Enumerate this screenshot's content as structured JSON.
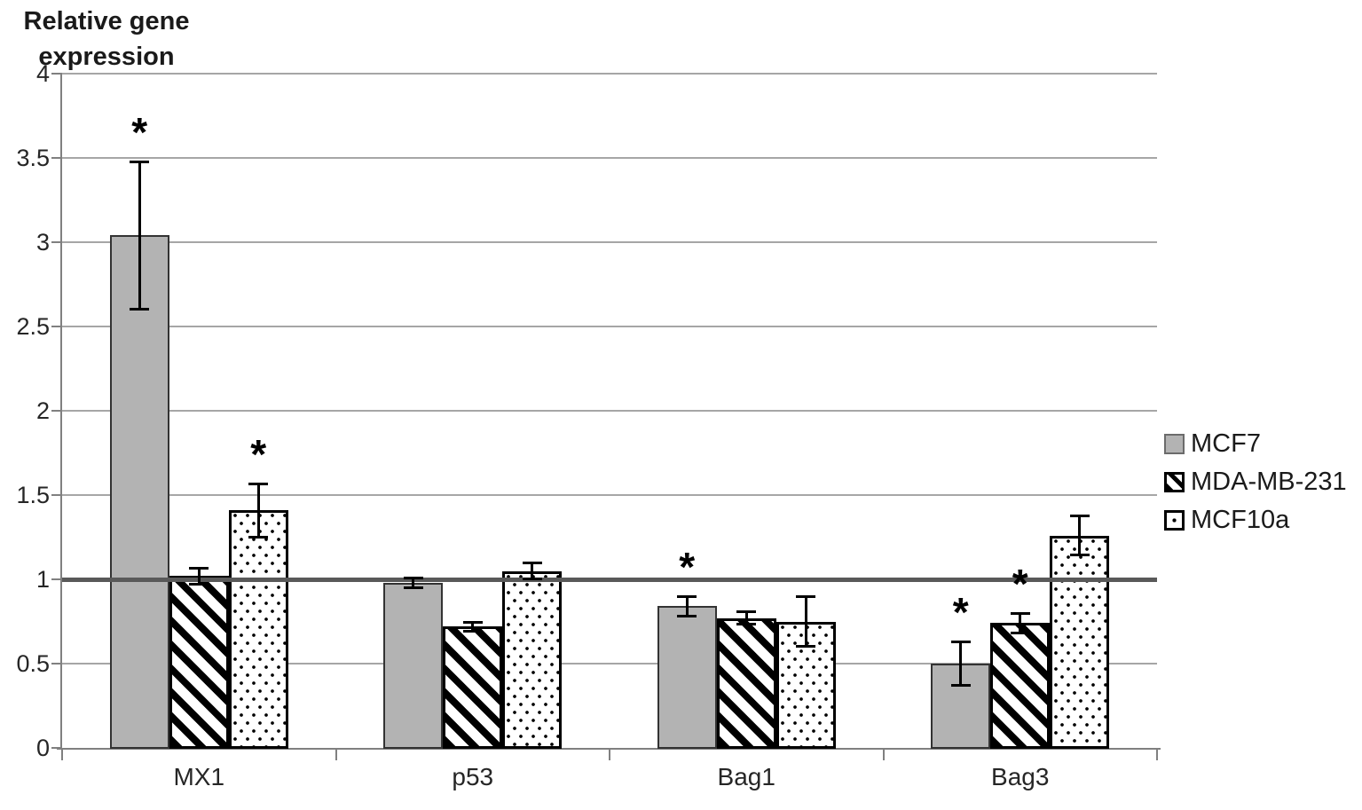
{
  "chart_data": {
    "type": "bar",
    "title": "Relative gene expression",
    "categories": [
      "MX1",
      "p53",
      "Bag1",
      "Bag3"
    ],
    "series": [
      {
        "name": "MCF7",
        "pattern": "solid",
        "values": [
          3.04,
          0.98,
          0.84,
          0.5
        ],
        "errors": [
          0.44,
          0.03,
          0.06,
          0.13
        ],
        "significant": [
          true,
          false,
          true,
          true
        ]
      },
      {
        "name": "MDA-MB-231",
        "pattern": "hatch",
        "values": [
          1.02,
          0.72,
          0.77,
          0.74
        ],
        "errors": [
          0.05,
          0.03,
          0.04,
          0.06
        ],
        "significant": [
          false,
          false,
          false,
          true
        ]
      },
      {
        "name": "MCF10a",
        "pattern": "dots",
        "values": [
          1.41,
          1.05,
          0.75,
          1.26
        ],
        "errors": [
          0.16,
          0.05,
          0.15,
          0.12
        ],
        "significant": [
          true,
          false,
          false,
          false
        ]
      }
    ],
    "xlabel": "",
    "ylabel": "Relative gene expression",
    "ylim": [
      0,
      4
    ],
    "yticks": [
      "0",
      "0.5",
      "1",
      "1.5",
      "2",
      "2.5",
      "3",
      "3.5",
      "4"
    ],
    "reference_line_y": 1,
    "grid": true,
    "legend_position": "right",
    "significance_marker": "*",
    "colors": {
      "bar_fill_gray": "#b3b3b3",
      "pattern_black": "#000000",
      "gridline": "#a6a6a6",
      "axis": "#808080",
      "reference_line": "#595959",
      "text": "#262626"
    }
  }
}
